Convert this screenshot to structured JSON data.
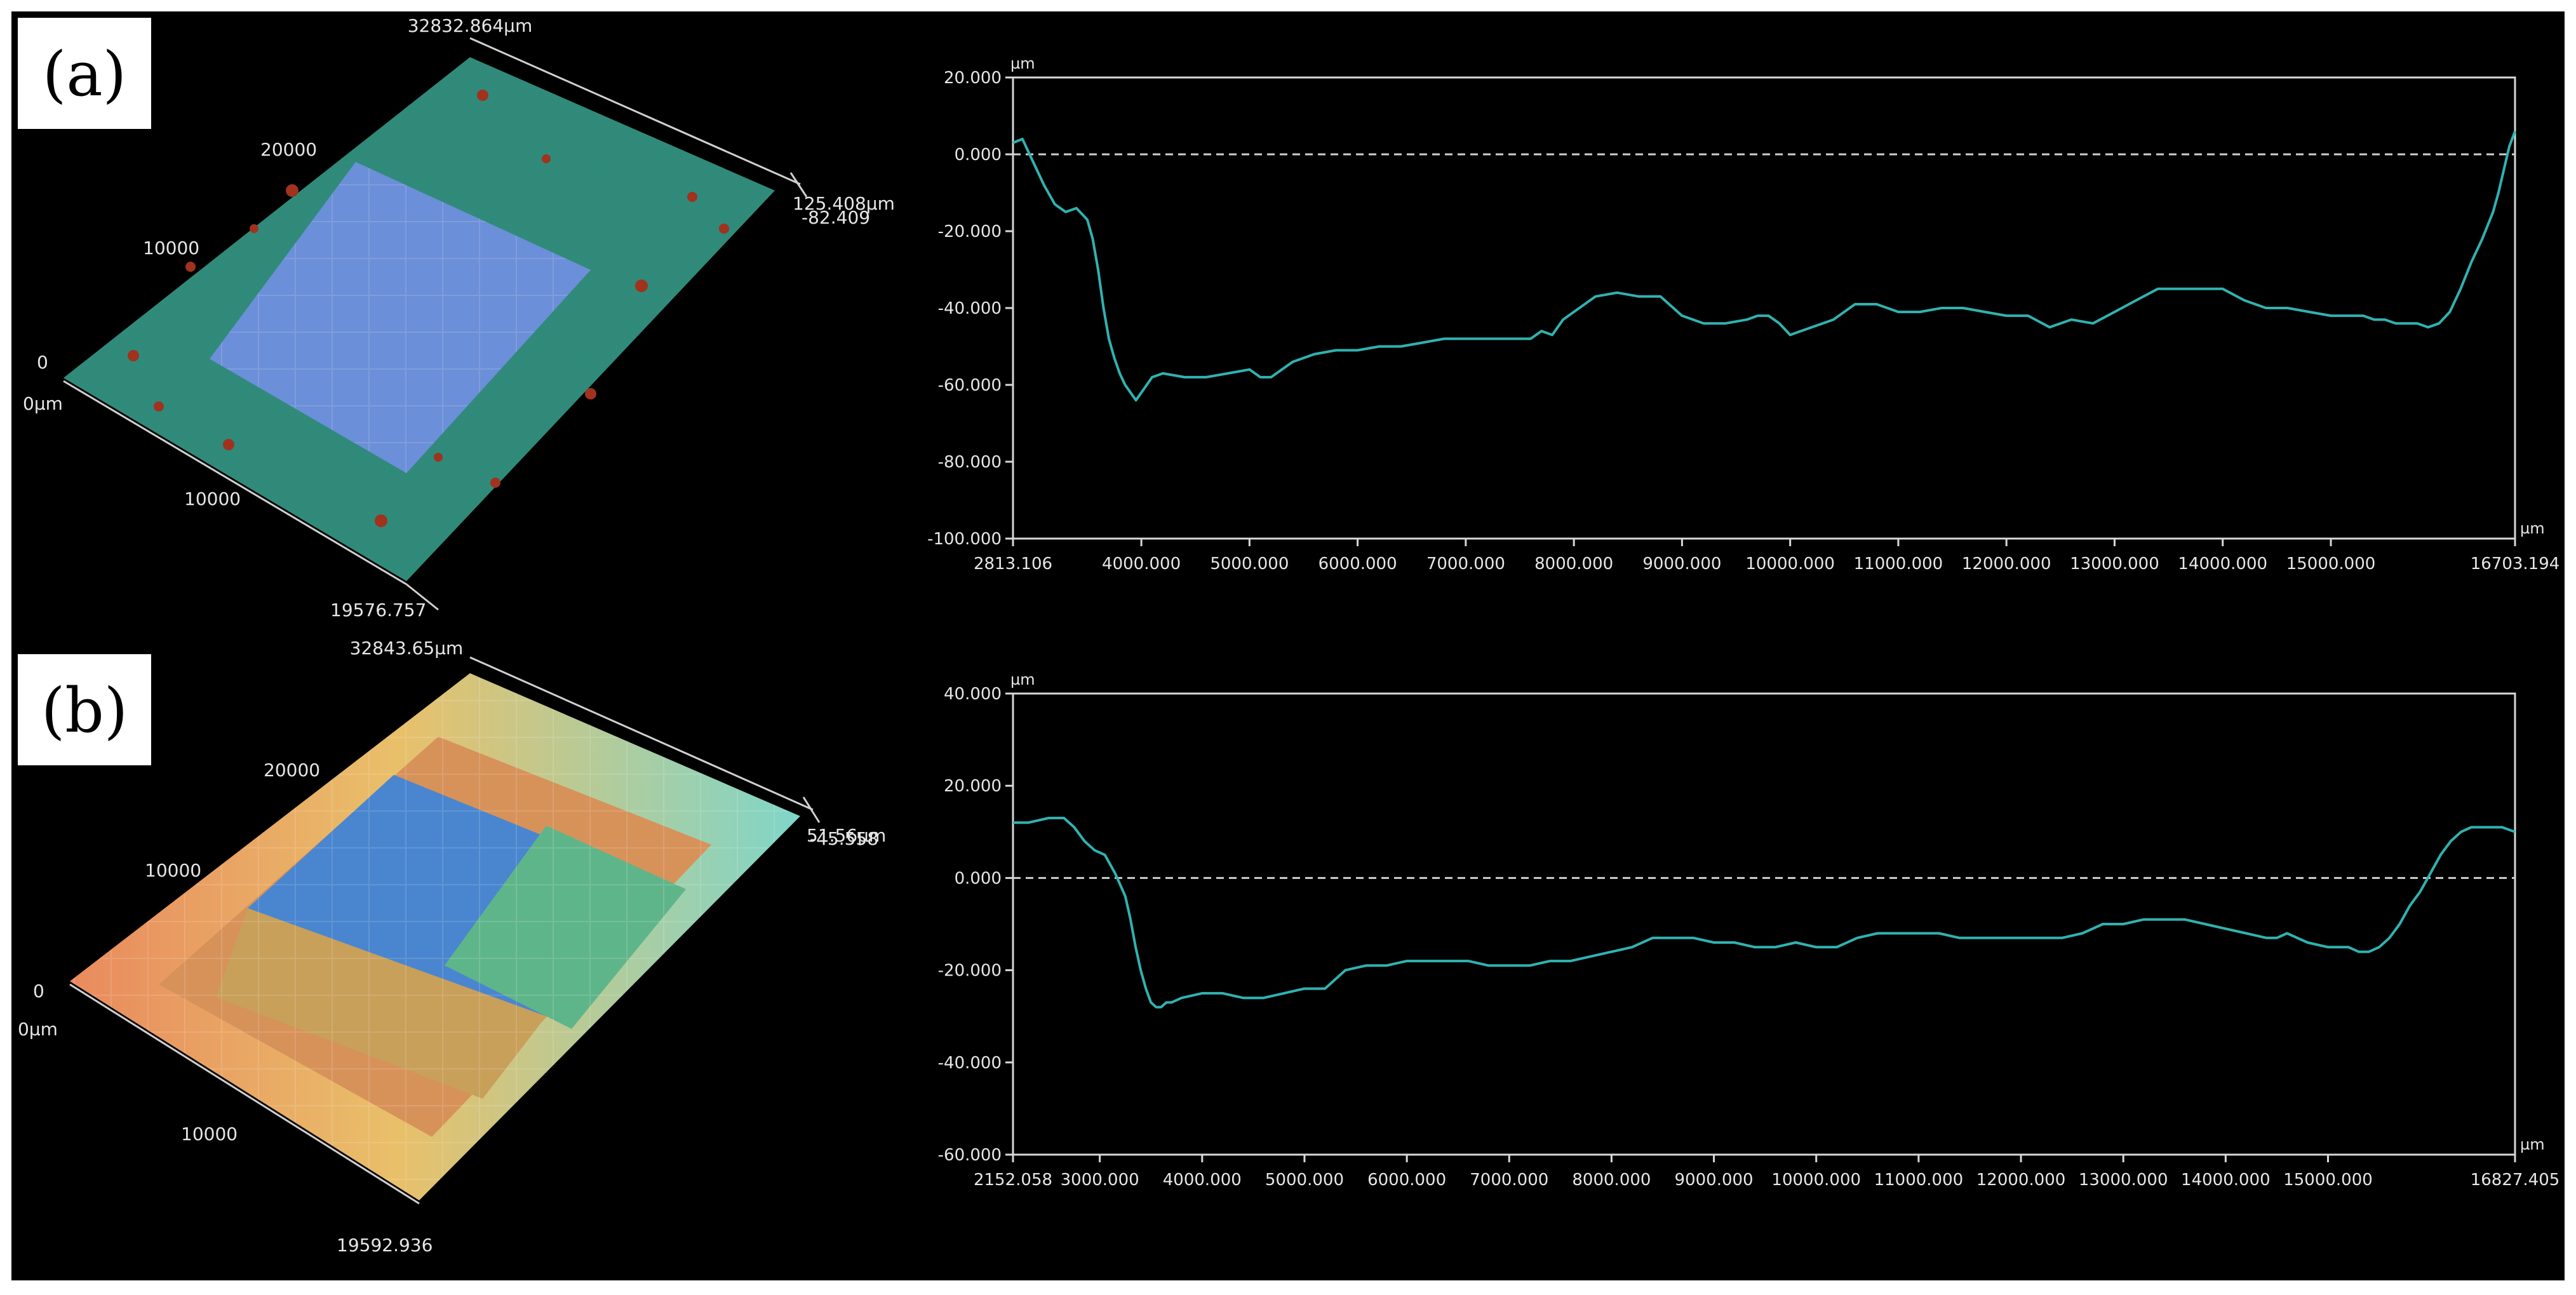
{
  "panels": [
    {
      "label": "(a)",
      "surface": {
        "colormap": "blue",
        "top_length_label": "32832.864µm",
        "z_labels": [
          "125.408µm",
          "-82.409"
        ],
        "axis_ticks": [
          "20000",
          "10000",
          "0"
        ],
        "origin_label": "0µm",
        "x_ticks": [
          "10000"
        ],
        "width_label": "19576.757"
      },
      "chart_data": {
        "type": "line",
        "y_unit": "µm",
        "x_unit": "µm",
        "xlim": [
          2813.106,
          16703.194
        ],
        "ylim": [
          -100,
          20
        ],
        "x_tick_labels": [
          "2813.106",
          "4000.000",
          "5000.000",
          "6000.000",
          "7000.000",
          "8000.000",
          "9000.000",
          "10000.000",
          "11000.000",
          "12000.000",
          "13000.000",
          "14000.000",
          "15000.000",
          "16703.194"
        ],
        "y_tick_labels": [
          "20.000",
          "0.000",
          "-20.000",
          "-40.000",
          "-60.000",
          "-80.000",
          "-100.000"
        ],
        "x_ticks": [
          2813.106,
          4000,
          5000,
          6000,
          7000,
          8000,
          9000,
          10000,
          11000,
          12000,
          13000,
          14000,
          15000,
          16703.194
        ],
        "y_ticks": [
          20,
          0,
          -20,
          -40,
          -60,
          -80,
          -100
        ],
        "reference_line": 0,
        "line_color": "#2fb3b0",
        "series": [
          {
            "x": [
              2813,
              2900,
              3000,
              3100,
              3200,
              3300,
              3400,
              3500,
              3550,
              3600,
              3650,
              3700,
              3750,
              3800,
              3850,
              3900,
              3950,
              4000,
              4100,
              4200,
              4400,
              4600,
              4800,
              5000,
              5100,
              5200,
              5300,
              5400,
              5600,
              5800,
              6000,
              6200,
              6400,
              6600,
              6800,
              7000,
              7200,
              7400,
              7600,
              7700,
              7800,
              7900,
              8000,
              8200,
              8400,
              8600,
              8800,
              9000,
              9200,
              9400,
              9600,
              9700,
              9800,
              9900,
              10000,
              10100,
              10200,
              10400,
              10600,
              10800,
              11000,
              11200,
              11400,
              11600,
              11800,
              12000,
              12200,
              12400,
              12600,
              12800,
              13000,
              13200,
              13400,
              13600,
              13800,
              14000,
              14200,
              14400,
              14600,
              14800,
              15000,
              15200,
              15300,
              15400,
              15500,
              15600,
              15700,
              15800,
              15900,
              16000,
              16100,
              16200,
              16300,
              16400,
              16500,
              16550,
              16600,
              16650,
              16703
            ],
            "y": [
              3,
              4,
              -2,
              -8,
              -13,
              -15,
              -14,
              -17,
              -22,
              -30,
              -40,
              -48,
              -53,
              -57,
              -60,
              -62,
              -64,
              -62,
              -58,
              -57,
              -58,
              -58,
              -57,
              -56,
              -58,
              -58,
              -56,
              -54,
              -52,
              -51,
              -51,
              -50,
              -50,
              -49,
              -48,
              -48,
              -48,
              -48,
              -48,
              -46,
              -47,
              -43,
              -41,
              -37,
              -36,
              -37,
              -37,
              -42,
              -44,
              -44,
              -43,
              -42,
              -42,
              -44,
              -47,
              -46,
              -45,
              -43,
              -39,
              -39,
              -41,
              -41,
              -40,
              -40,
              -41,
              -42,
              -42,
              -45,
              -43,
              -44,
              -41,
              -38,
              -35,
              -35,
              -35,
              -35,
              -38,
              -40,
              -40,
              -41,
              -42,
              -42,
              -42,
              -43,
              -43,
              -44,
              -44,
              -44,
              -45,
              -44,
              -41,
              -35,
              -28,
              -22,
              -15,
              -10,
              -4,
              2,
              6
            ]
          }
        ]
      }
    },
    {
      "label": "(b)",
      "surface": {
        "colormap": "jet",
        "top_length_label": "32843.65µm",
        "z_labels": [
          "51.56µm",
          "-45.558"
        ],
        "axis_ticks": [
          "20000",
          "10000",
          "0"
        ],
        "origin_label": "0µm",
        "x_ticks": [
          "10000"
        ],
        "width_label": "19592.936"
      },
      "chart_data": {
        "type": "line",
        "y_unit": "µm",
        "x_unit": "µm",
        "xlim": [
          2152.058,
          16827.405
        ],
        "ylim": [
          -60,
          40
        ],
        "x_tick_labels": [
          "2152.058",
          "3000.000",
          "4000.000",
          "5000.000",
          "6000.000",
          "7000.000",
          "8000.000",
          "9000.000",
          "10000.000",
          "11000.000",
          "12000.000",
          "13000.000",
          "14000.000",
          "15000.000",
          "16827.405"
        ],
        "y_tick_labels": [
          "40.000",
          "20.000",
          "0.000",
          "-20.000",
          "-40.000",
          "-60.000"
        ],
        "x_ticks": [
          2152.058,
          3000,
          4000,
          5000,
          6000,
          7000,
          8000,
          9000,
          10000,
          11000,
          12000,
          13000,
          14000,
          15000,
          16827.405
        ],
        "y_ticks": [
          40,
          20,
          0,
          -20,
          -40,
          -60
        ],
        "reference_line": 0,
        "line_color": "#2fb3b0",
        "series": [
          {
            "x": [
              2152,
              2300,
              2500,
              2650,
              2750,
              2850,
              2950,
              3050,
              3150,
              3250,
              3300,
              3350,
              3400,
              3450,
              3500,
              3550,
              3600,
              3650,
              3700,
              3800,
              4000,
              4200,
              4400,
              4600,
              4800,
              5000,
              5200,
              5300,
              5400,
              5600,
              5800,
              6000,
              6200,
              6400,
              6600,
              6800,
              7000,
              7200,
              7400,
              7600,
              7800,
              8000,
              8200,
              8400,
              8600,
              8800,
              9000,
              9200,
              9400,
              9600,
              9800,
              10000,
              10200,
              10400,
              10600,
              10800,
              11000,
              11200,
              11400,
              11600,
              11800,
              12000,
              12200,
              12400,
              12600,
              12700,
              12800,
              13000,
              13200,
              13400,
              13600,
              13800,
              14000,
              14200,
              14400,
              14500,
              14600,
              14800,
              15000,
              15200,
              15300,
              15400,
              15500,
              15600,
              15700,
              15800,
              15900,
              16000,
              16100,
              16200,
              16300,
              16400,
              16500,
              16600,
              16700,
              16827
            ],
            "y": [
              12,
              12,
              13,
              13,
              11,
              8,
              6,
              5,
              1,
              -4,
              -9,
              -15,
              -20,
              -24,
              -27,
              -28,
              -28,
              -27,
              -27,
              -26,
              -25,
              -25,
              -26,
              -26,
              -25,
              -24,
              -24,
              -22,
              -20,
              -19,
              -19,
              -18,
              -18,
              -18,
              -18,
              -19,
              -19,
              -19,
              -18,
              -18,
              -17,
              -16,
              -15,
              -13,
              -13,
              -13,
              -14,
              -14,
              -15,
              -15,
              -14,
              -15,
              -15,
              -13,
              -12,
              -12,
              -12,
              -12,
              -13,
              -13,
              -13,
              -13,
              -13,
              -13,
              -12,
              -11,
              -10,
              -10,
              -9,
              -9,
              -9,
              -10,
              -11,
              -12,
              -13,
              -13,
              -12,
              -14,
              -15,
              -15,
              -16,
              -16,
              -15,
              -13,
              -10,
              -6,
              -3,
              1,
              5,
              8,
              10,
              11,
              11,
              11,
              11,
              10
            ]
          }
        ]
      }
    }
  ]
}
